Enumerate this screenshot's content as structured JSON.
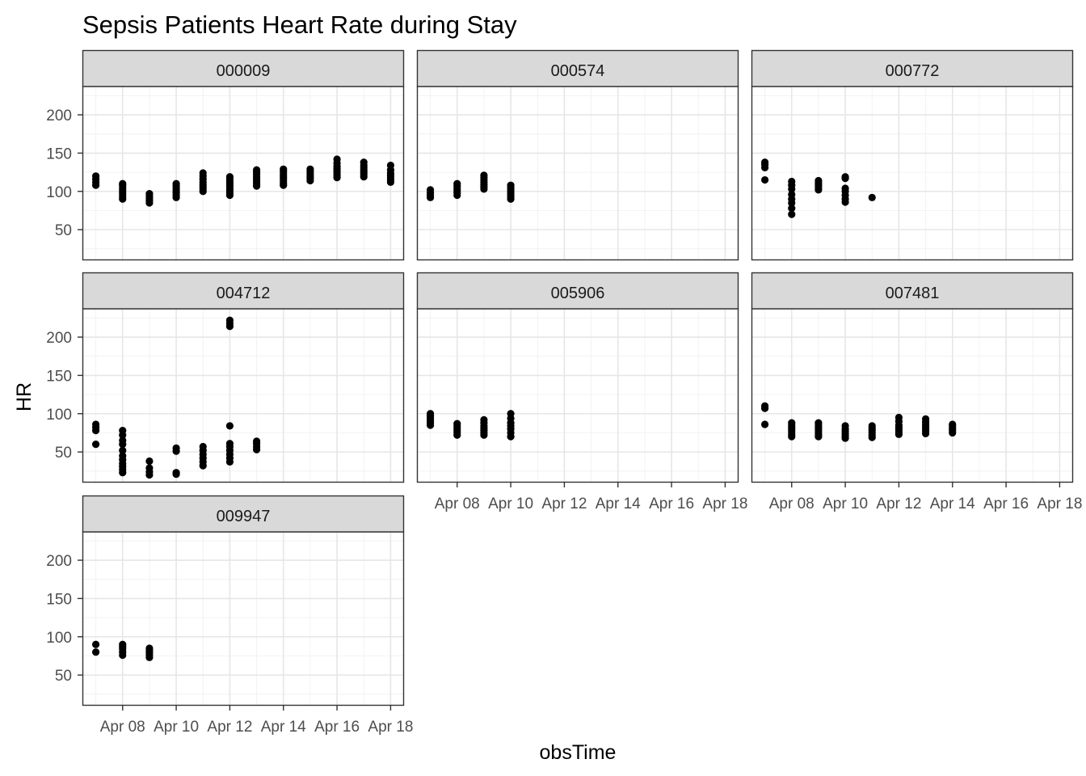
{
  "chart_data": {
    "type": "scatter",
    "title": "Sepsis Patients Heart Rate during Stay",
    "xlabel": "obsTime",
    "ylabel": "HR",
    "x_axis": {
      "kind": "date",
      "range": [
        "2020-04-06T12:00",
        "2020-04-18T12:00"
      ],
      "ticks": [
        "2020-04-08",
        "2020-04-10",
        "2020-04-12",
        "2020-04-14",
        "2020-04-16",
        "2020-04-18"
      ],
      "tick_labels": [
        "Apr 08",
        "Apr 10",
        "Apr 12",
        "Apr 14",
        "Apr 16",
        "Apr 18"
      ]
    },
    "y_axis": {
      "range": [
        10,
        237
      ],
      "ticks": [
        50,
        100,
        150,
        200
      ],
      "tick_labels": [
        "50",
        "100",
        "150",
        "200"
      ]
    },
    "grid": true,
    "theme": "bw",
    "point_color": "#000000",
    "panels": [
      {
        "id": "000009",
        "points": [
          {
            "x": "2020-04-07",
            "y": [
              108,
              112,
              116,
              120
            ]
          },
          {
            "x": "2020-04-08",
            "y": [
              90,
              93,
              96,
              99,
              102,
              105,
              108,
              110
            ]
          },
          {
            "x": "2020-04-09",
            "y": [
              85,
              88,
              91,
              94,
              97
            ]
          },
          {
            "x": "2020-04-10",
            "y": [
              92,
              95,
              98,
              101,
              104,
              107,
              110
            ]
          },
          {
            "x": "2020-04-11",
            "y": [
              100,
              103,
              106,
              109,
              112,
              116,
              120,
              124
            ]
          },
          {
            "x": "2020-04-12",
            "y": [
              95,
              98,
              101,
              104,
              107,
              110,
              113,
              116,
              119
            ]
          },
          {
            "x": "2020-04-13",
            "y": [
              107,
              110,
              113,
              116,
              119,
              122,
              125,
              128
            ]
          },
          {
            "x": "2020-04-14",
            "y": [
              108,
              111,
              114,
              117,
              120,
              123,
              126,
              129
            ]
          },
          {
            "x": "2020-04-15",
            "y": [
              114,
              117,
              120,
              123,
              126,
              129
            ]
          },
          {
            "x": "2020-04-16",
            "y": [
              118,
              121,
              124,
              127,
              130,
              133,
              137,
              142
            ]
          },
          {
            "x": "2020-04-17",
            "y": [
              119,
              122,
              125,
              128,
              131,
              134,
              138
            ]
          },
          {
            "x": "2020-04-18",
            "y": [
              112,
              115,
              118,
              121,
              124,
              128,
              134
            ]
          }
        ]
      },
      {
        "id": "000574",
        "points": [
          {
            "x": "2020-04-07",
            "y": [
              92,
              95,
              98,
              102
            ]
          },
          {
            "x": "2020-04-08",
            "y": [
              95,
              98,
              101,
              104,
              107,
              110
            ]
          },
          {
            "x": "2020-04-09",
            "y": [
              103,
              106,
              109,
              112,
              115,
              118,
              121
            ]
          },
          {
            "x": "2020-04-10",
            "y": [
              90,
              93,
              96,
              99,
              102,
              105,
              108
            ]
          }
        ]
      },
      {
        "id": "000772",
        "points": [
          {
            "x": "2020-04-07",
            "y": [
              115,
              131,
              135,
              138
            ]
          },
          {
            "x": "2020-04-08",
            "y": [
              70,
              78,
              85,
              90,
              96,
              103,
              108,
              113
            ]
          },
          {
            "x": "2020-04-09",
            "y": [
              102,
              105,
              108,
              111,
              114
            ]
          },
          {
            "x": "2020-04-10",
            "y": [
              86,
              90,
              95,
              100,
              104,
              117,
              119
            ]
          },
          {
            "x": "2020-04-11",
            "y": [
              92
            ]
          }
        ]
      },
      {
        "id": "004712",
        "points": [
          {
            "x": "2020-04-07",
            "y": [
              60,
              78,
              82,
              86
            ]
          },
          {
            "x": "2020-04-08",
            "y": [
              23,
              27,
              31,
              35,
              40,
              45,
              52,
              60,
              65,
              72,
              78
            ]
          },
          {
            "x": "2020-04-09",
            "y": [
              20,
              24,
              29,
              38
            ]
          },
          {
            "x": "2020-04-10",
            "y": [
              21,
              23,
              51,
              55
            ]
          },
          {
            "x": "2020-04-11",
            "y": [
              32,
              37,
              42,
              47,
              52,
              57
            ]
          },
          {
            "x": "2020-04-12",
            "y": [
              37,
              42,
              47,
              52,
              57,
              61,
              84,
              214,
              218,
              222
            ]
          },
          {
            "x": "2020-04-13",
            "y": [
              53,
              57,
              61,
              64
            ]
          }
        ]
      },
      {
        "id": "005906",
        "points": [
          {
            "x": "2020-04-07",
            "y": [
              85,
              88,
              91,
              94,
              97,
              100
            ]
          },
          {
            "x": "2020-04-08",
            "y": [
              72,
              75,
              78,
              81,
              84,
              87
            ]
          },
          {
            "x": "2020-04-09",
            "y": [
              72,
              75,
              78,
              81,
              84,
              88,
              92
            ]
          },
          {
            "x": "2020-04-10",
            "y": [
              70,
              75,
              80,
              84,
              88,
              94,
              100
            ]
          }
        ]
      },
      {
        "id": "007481",
        "points": [
          {
            "x": "2020-04-07",
            "y": [
              86,
              107,
              110
            ]
          },
          {
            "x": "2020-04-08",
            "y": [
              70,
              73,
              76,
              79,
              82,
              85,
              88
            ]
          },
          {
            "x": "2020-04-09",
            "y": [
              70,
              73,
              76,
              79,
              82,
              85,
              88
            ]
          },
          {
            "x": "2020-04-10",
            "y": [
              68,
              71,
              74,
              77,
              80,
              84
            ]
          },
          {
            "x": "2020-04-11",
            "y": [
              69,
              72,
              75,
              78,
              81,
              84
            ]
          },
          {
            "x": "2020-04-12",
            "y": [
              73,
              76,
              79,
              82,
              85,
              90,
              95
            ]
          },
          {
            "x": "2020-04-13",
            "y": [
              74,
              77,
              80,
              83,
              86,
              89,
              93
            ]
          },
          {
            "x": "2020-04-14",
            "y": [
              75,
              78,
              81,
              84,
              86
            ]
          }
        ]
      },
      {
        "id": "009947",
        "points": [
          {
            "x": "2020-04-07",
            "y": [
              80,
              90
            ]
          },
          {
            "x": "2020-04-08",
            "y": [
              76,
              80,
              84,
              87,
              90
            ]
          },
          {
            "x": "2020-04-09",
            "y": [
              73,
              76,
              79,
              82,
              85
            ]
          }
        ]
      }
    ]
  }
}
